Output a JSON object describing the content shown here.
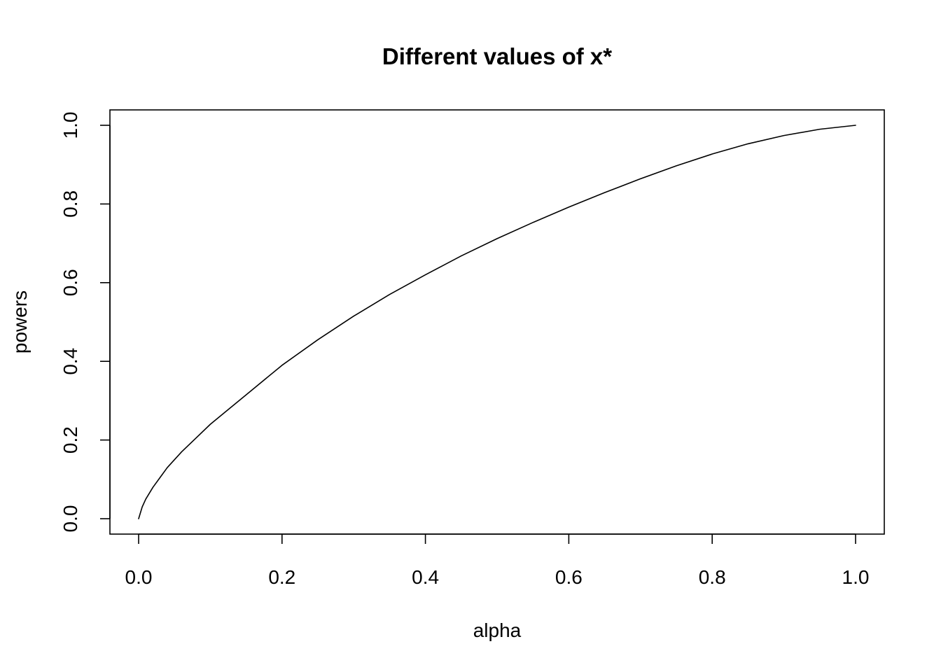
{
  "chart_data": {
    "type": "line",
    "title": "Different values of x*",
    "xlabel": "alpha",
    "ylabel": "powers",
    "xlim": [
      0.0,
      1.0
    ],
    "ylim": [
      0.0,
      1.0
    ],
    "x_ticks": [
      0.0,
      0.2,
      0.4,
      0.6,
      0.8,
      1.0
    ],
    "x_tick_labels": [
      "0.0",
      "0.2",
      "0.4",
      "0.6",
      "0.8",
      "1.0"
    ],
    "y_ticks": [
      0.0,
      0.2,
      0.4,
      0.6,
      0.8,
      1.0
    ],
    "y_tick_labels": [
      "0.0",
      "0.2",
      "0.4",
      "0.6",
      "0.8",
      "1.0"
    ],
    "grid": false,
    "legend": "none",
    "line_color": "#000000",
    "series": [
      {
        "x": [
          0.0,
          0.005,
          0.01,
          0.02,
          0.03,
          0.04,
          0.05,
          0.06,
          0.08,
          0.1,
          0.12,
          0.15,
          0.2,
          0.25,
          0.3,
          0.35,
          0.4,
          0.45,
          0.5,
          0.55,
          0.6,
          0.65,
          0.7,
          0.75,
          0.8,
          0.85,
          0.9,
          0.95,
          1.0
        ],
        "y": [
          0.0,
          0.03,
          0.05,
          0.08,
          0.105,
          0.13,
          0.15,
          0.17,
          0.205,
          0.24,
          0.27,
          0.315,
          0.39,
          0.455,
          0.515,
          0.57,
          0.62,
          0.668,
          0.712,
          0.753,
          0.792,
          0.829,
          0.864,
          0.897,
          0.927,
          0.953,
          0.974,
          0.99,
          1.0
        ]
      }
    ]
  }
}
